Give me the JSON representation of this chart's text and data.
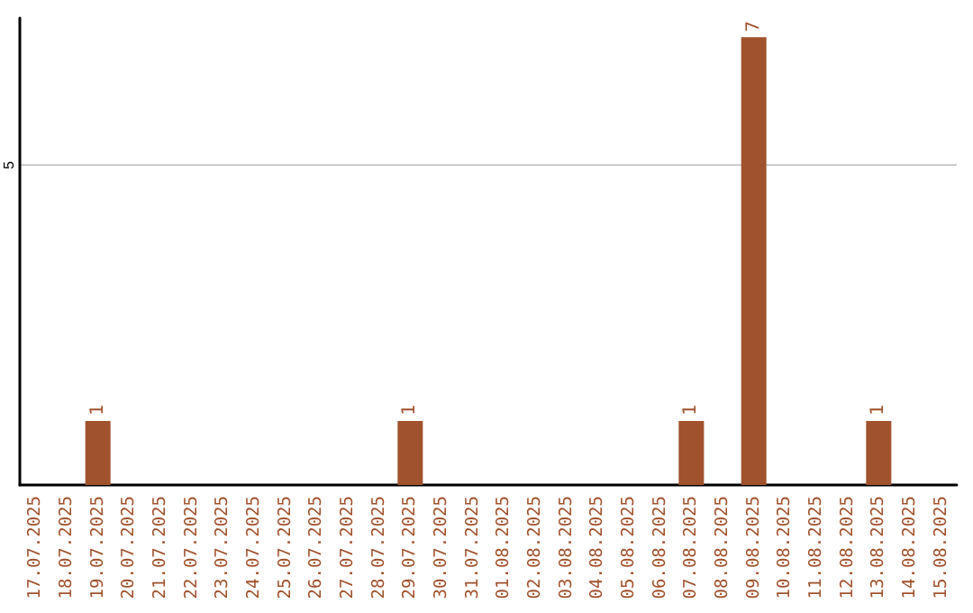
{
  "chart_data": {
    "type": "bar",
    "categories": [
      "17.07.2025",
      "18.07.2025",
      "19.07.2025",
      "20.07.2025",
      "21.07.2025",
      "22.07.2025",
      "23.07.2025",
      "24.07.2025",
      "25.07.2025",
      "26.07.2025",
      "27.07.2025",
      "28.07.2025",
      "29.07.2025",
      "30.07.2025",
      "31.07.2025",
      "01.08.2025",
      "02.08.2025",
      "03.08.2025",
      "04.08.2025",
      "05.08.2025",
      "06.08.2025",
      "07.08.2025",
      "08.08.2025",
      "09.08.2025",
      "10.08.2025",
      "11.08.2025",
      "12.08.2025",
      "13.08.2025",
      "14.08.2025",
      "15.08.2025"
    ],
    "values": [
      0,
      0,
      1,
      0,
      0,
      0,
      0,
      0,
      0,
      0,
      0,
      0,
      1,
      0,
      0,
      0,
      0,
      0,
      0,
      0,
      0,
      1,
      0,
      7,
      0,
      0,
      0,
      1,
      0,
      0
    ],
    "value_labels": [
      null,
      null,
      "1",
      null,
      null,
      null,
      null,
      null,
      null,
      null,
      null,
      null,
      "1",
      null,
      null,
      null,
      null,
      null,
      null,
      null,
      null,
      "1",
      null,
      "7",
      null,
      null,
      null,
      "1",
      null,
      null
    ],
    "color": "#a0522d",
    "ylim": [
      0,
      7.3
    ],
    "yticks": [
      5
    ],
    "grid": "y"
  }
}
